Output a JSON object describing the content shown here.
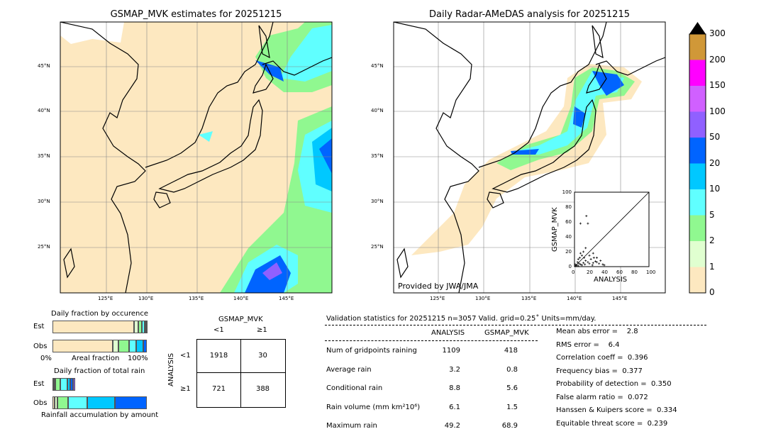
{
  "left_map": {
    "title": "GSMAP_MVK estimates for 20251215",
    "lat_labels": [
      "45°N",
      "40°N",
      "35°N",
      "30°N",
      "25°N"
    ],
    "lon_labels": [
      "125°E",
      "130°E",
      "135°E",
      "140°E",
      "145°E"
    ]
  },
  "right_map": {
    "title": "Daily Radar-AMeDAS analysis for 20251215",
    "lat_labels": [
      "45°N",
      "40°N",
      "35°N",
      "30°N",
      "25°N"
    ],
    "lon_labels": [
      "125°E",
      "130°E",
      "135°E",
      "140°E",
      "145°E"
    ],
    "credit": "Provided by JWA/JMA"
  },
  "colorbar": {
    "labels": [
      "0",
      "1",
      "2",
      "5",
      "10",
      "20",
      "50",
      "100",
      "150",
      "200",
      "300"
    ],
    "colors": [
      "#fde8c0",
      "#e0ffd0",
      "#90f890",
      "#60ffff",
      "#00c8ff",
      "#0064ff",
      "#9060ff",
      "#d060ff",
      "#ff00ff",
      "#d09838"
    ],
    "extend_color": "#000000"
  },
  "scatter": {
    "xlabel": "ANALYSIS",
    "ylabel": "GSMAP_MVK",
    "ticks": [
      "0",
      "20",
      "40",
      "60",
      "80",
      "100"
    ],
    "points": [
      [
        2,
        1
      ],
      [
        3,
        2
      ],
      [
        5,
        1
      ],
      [
        6,
        4
      ],
      [
        8,
        3
      ],
      [
        10,
        2
      ],
      [
        12,
        5
      ],
      [
        14,
        3
      ],
      [
        15,
        8
      ],
      [
        18,
        6
      ],
      [
        20,
        4
      ],
      [
        22,
        10
      ],
      [
        25,
        5
      ],
      [
        28,
        7
      ],
      [
        30,
        12
      ],
      [
        33,
        4
      ],
      [
        35,
        8
      ],
      [
        38,
        3
      ],
      [
        12,
        20
      ],
      [
        15,
        25
      ],
      [
        10,
        15
      ],
      [
        8,
        18
      ],
      [
        16,
        68
      ],
      [
        8,
        58
      ],
      [
        18,
        58
      ],
      [
        20,
        15
      ],
      [
        25,
        18
      ],
      [
        5,
        10
      ],
      [
        4,
        6
      ],
      [
        1,
        3
      ],
      [
        7,
        12
      ],
      [
        30,
        6
      ],
      [
        40,
        2
      ],
      [
        24,
        2
      ],
      [
        26,
        12
      ],
      [
        13,
        12
      ]
    ]
  },
  "occurrence": {
    "title": "Daily fraction by occurence",
    "rows": [
      {
        "label": "Est",
        "fractions": [
          0.865,
          0.045,
          0.04,
          0.03,
          0.013,
          0.007
        ]
      },
      {
        "label": "Obs",
        "fractions": [
          0.64,
          0.06,
          0.11,
          0.075,
          0.075,
          0.04
        ]
      }
    ],
    "xlabel_left": "0%",
    "xlabel_mid": "Areal fraction",
    "xlabel_right": "100%"
  },
  "total_rain": {
    "title": "Daily fraction of total rain",
    "rows": [
      {
        "label": "Est",
        "fractions": [
          0.015,
          0.015,
          0.05,
          0.08,
          0.03,
          0.025,
          0.025
        ]
      },
      {
        "label": "Obs",
        "fractions": [
          0.02,
          0.03,
          0.115,
          0.2,
          0.3,
          0.335,
          0
        ]
      }
    ],
    "xlabel": "Rainfall accumulation by amount"
  },
  "contingency": {
    "col_title": "GSMAP_MVK",
    "row_title": "ANALYSIS",
    "col_labels": [
      "<1",
      "≥1"
    ],
    "row_labels": [
      "<1",
      "≥1"
    ],
    "cells": [
      [
        "1918",
        "30"
      ],
      [
        "721",
        "388"
      ]
    ]
  },
  "stats": {
    "header": "Validation statistics for 20251215  n=3057 Valid. grid=0.25˚ Units=mm/day.",
    "col_analysis": "ANALYSIS",
    "col_gsmap": "GSMAP_MVK",
    "rows": [
      {
        "label": "Num of gridpoints raining",
        "a": "1109",
        "g": "418"
      },
      {
        "label": "Average rain",
        "a": "3.2",
        "g": "0.8"
      },
      {
        "label": "Conditional rain",
        "a": "8.8",
        "g": "5.6"
      },
      {
        "label": "Rain volume (mm km²10⁶)",
        "a": "6.1",
        "g": "1.5"
      },
      {
        "label": "Maximum rain",
        "a": "49.2",
        "g": "68.9"
      }
    ],
    "scores": [
      "Mean abs error =    2.8",
      "RMS error =    6.4",
      "Correlation coeff =  0.396",
      "Frequency bias =  0.377",
      "Probability of detection =  0.350",
      "False alarm ratio =  0.072",
      "Hanssen & Kuipers score =  0.334",
      "Equitable threat score =  0.239"
    ]
  }
}
